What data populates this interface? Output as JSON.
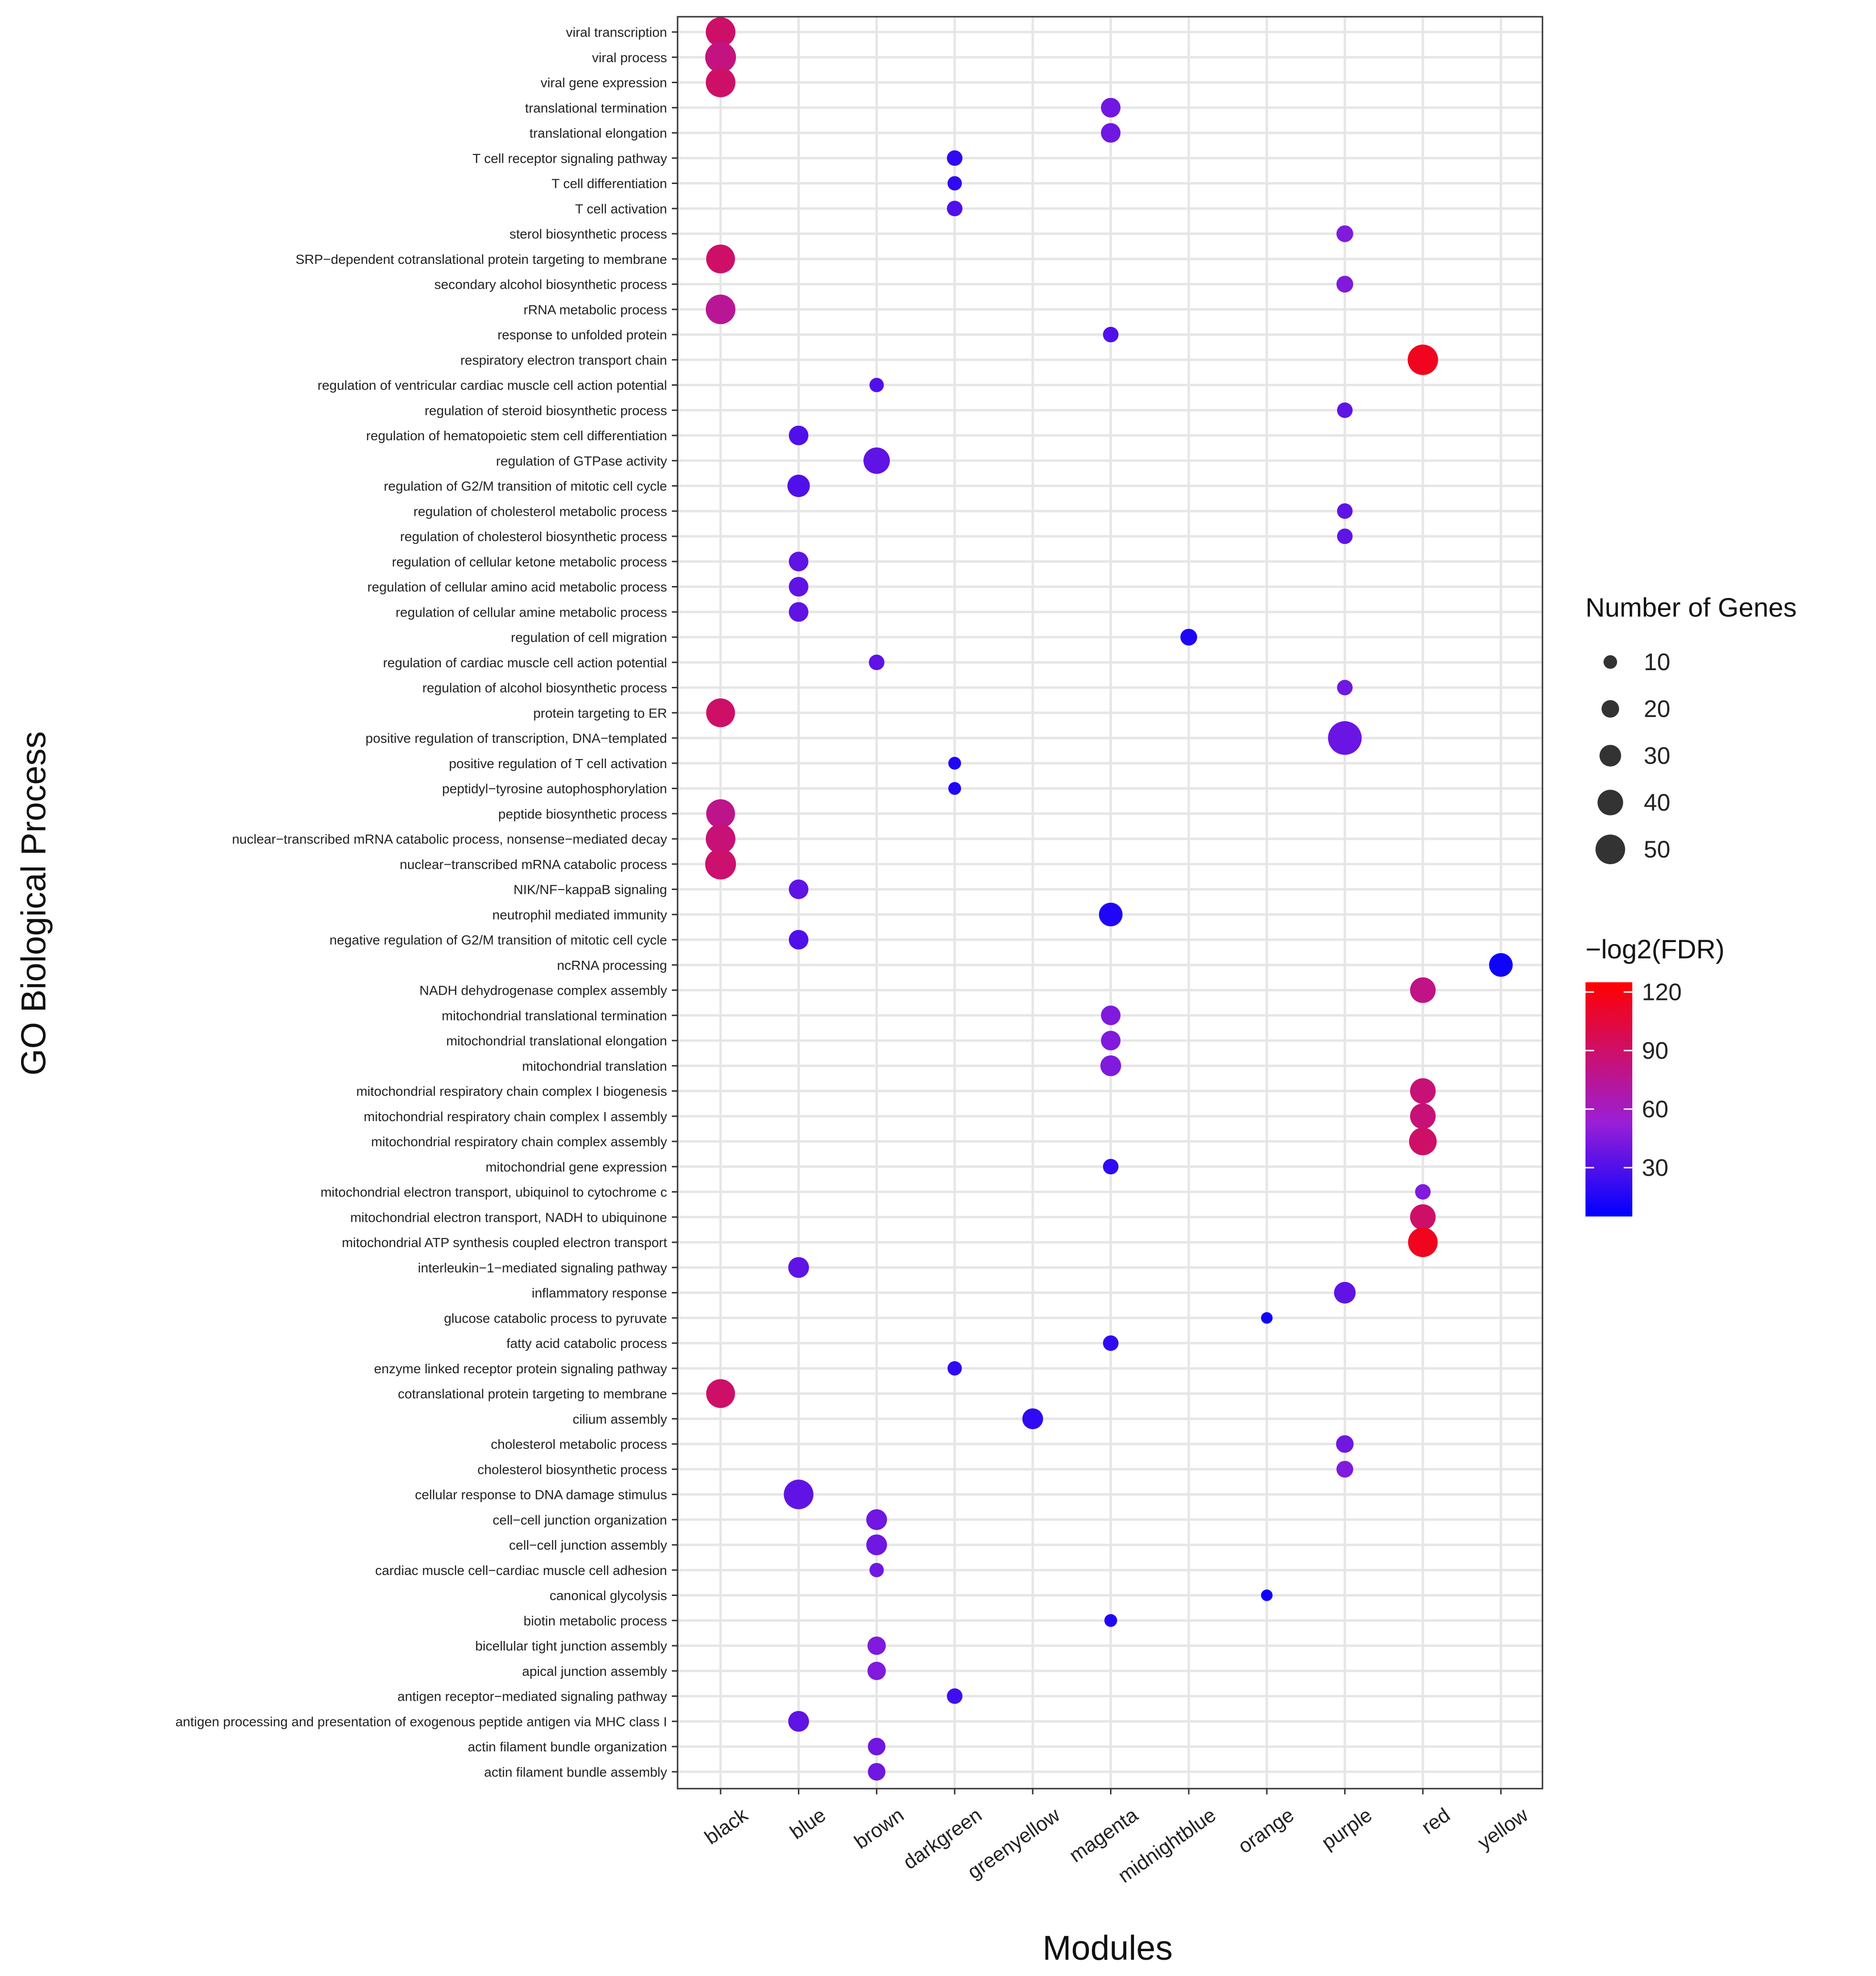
{
  "chart_data": {
    "type": "scatter",
    "title": "",
    "xlabel": "Modules",
    "ylabel": "GO Biological Process",
    "categories_x": [
      "black",
      "blue",
      "brown",
      "darkgreen",
      "greenyellow",
      "magenta",
      "midnightblue",
      "orange",
      "purple",
      "red",
      "yellow"
    ],
    "categories_y": [
      "viral transcription",
      "viral process",
      "viral gene expression",
      "translational termination",
      "translational elongation",
      "T cell receptor signaling pathway",
      "T cell differentiation",
      "T cell activation",
      "sterol biosynthetic process",
      "SRP−dependent cotranslational protein targeting to membrane",
      "secondary alcohol biosynthetic process",
      "rRNA metabolic process",
      "response to unfolded protein",
      "respiratory electron transport chain",
      "regulation of ventricular cardiac muscle cell action potential",
      "regulation of steroid biosynthetic process",
      "regulation of hematopoietic stem cell differentiation",
      "regulation of GTPase activity",
      "regulation of G2/M transition of mitotic cell cycle",
      "regulation of cholesterol metabolic process",
      "regulation of cholesterol biosynthetic process",
      "regulation of cellular ketone metabolic process",
      "regulation of cellular amino acid metabolic process",
      "regulation of cellular amine metabolic process",
      "regulation of cell migration",
      "regulation of cardiac muscle cell action potential",
      "regulation of alcohol biosynthetic process",
      "protein targeting to ER",
      "positive regulation of transcription, DNA−templated",
      "positive regulation of T cell activation",
      "peptidyl−tyrosine autophosphorylation",
      "peptide biosynthetic process",
      "nuclear−transcribed mRNA catabolic process, nonsense−mediated decay",
      "nuclear−transcribed mRNA catabolic process",
      "NIK/NF−kappaB signaling",
      "neutrophil mediated immunity",
      "negative regulation of G2/M transition of mitotic cell cycle",
      "ncRNA processing",
      "NADH dehydrogenase complex assembly",
      "mitochondrial translational termination",
      "mitochondrial translational elongation",
      "mitochondrial translation",
      "mitochondrial respiratory chain complex I biogenesis",
      "mitochondrial respiratory chain complex I assembly",
      "mitochondrial respiratory chain complex assembly",
      "mitochondrial gene expression",
      "mitochondrial electron transport, ubiquinol to cytochrome c",
      "mitochondrial electron transport, NADH to ubiquinone",
      "mitochondrial ATP synthesis coupled electron transport",
      "interleukin−1−mediated signaling pathway",
      "inflammatory response",
      "glucose catabolic process to pyruvate",
      "fatty acid catabolic process",
      "enzyme linked receptor protein signaling pathway",
      "cotranslational protein targeting to membrane",
      "cilium assembly",
      "cholesterol metabolic process",
      "cholesterol biosynthetic process",
      "cellular response to DNA damage stimulus",
      "cell−cell junction organization",
      "cell−cell junction assembly",
      "cardiac muscle cell−cardiac muscle cell adhesion",
      "canonical glycolysis",
      "biotin metabolic process",
      "bicellular tight junction assembly",
      "apical junction assembly",
      "antigen receptor−mediated signaling pathway",
      "antigen processing and presentation of exogenous peptide antigen via MHC class I",
      "actin filament bundle organization",
      "actin filament bundle assembly"
    ],
    "points": [
      {
        "y": "viral transcription",
        "x": "black",
        "genes": 50,
        "fdr": 90
      },
      {
        "y": "viral process",
        "x": "black",
        "genes": 53,
        "fdr": 82
      },
      {
        "y": "viral gene expression",
        "x": "black",
        "genes": 50,
        "fdr": 90
      },
      {
        "y": "translational termination",
        "x": "magenta",
        "genes": 25,
        "fdr": 40
      },
      {
        "y": "translational elongation",
        "x": "magenta",
        "genes": 25,
        "fdr": 40
      },
      {
        "y": "T cell receptor signaling pathway",
        "x": "darkgreen",
        "genes": 15,
        "fdr": 20
      },
      {
        "y": "T cell differentiation",
        "x": "darkgreen",
        "genes": 12,
        "fdr": 20
      },
      {
        "y": "T cell activation",
        "x": "darkgreen",
        "genes": 15,
        "fdr": 30
      },
      {
        "y": "sterol biosynthetic process",
        "x": "purple",
        "genes": 18,
        "fdr": 45
      },
      {
        "y": "SRP−dependent cotranslational protein targeting to membrane",
        "x": "black",
        "genes": 48,
        "fdr": 90
      },
      {
        "y": "secondary alcohol biosynthetic process",
        "x": "purple",
        "genes": 18,
        "fdr": 45
      },
      {
        "y": "rRNA metabolic process",
        "x": "black",
        "genes": 50,
        "fdr": 75
      },
      {
        "y": "response to unfolded protein",
        "x": "magenta",
        "genes": 15,
        "fdr": 30
      },
      {
        "y": "respiratory electron transport chain",
        "x": "red",
        "genes": 52,
        "fdr": 115
      },
      {
        "y": "regulation of ventricular cardiac muscle cell action potential",
        "x": "brown",
        "genes": 12,
        "fdr": 30
      },
      {
        "y": "regulation of steroid biosynthetic process",
        "x": "purple",
        "genes": 15,
        "fdr": 35
      },
      {
        "y": "regulation of hematopoietic stem cell differentiation",
        "x": "blue",
        "genes": 25,
        "fdr": 30
      },
      {
        "y": "regulation of GTPase activity",
        "x": "brown",
        "genes": 42,
        "fdr": 35
      },
      {
        "y": "regulation of G2/M transition of mitotic cell cycle",
        "x": "blue",
        "genes": 32,
        "fdr": 30
      },
      {
        "y": "regulation of cholesterol metabolic process",
        "x": "purple",
        "genes": 15,
        "fdr": 35
      },
      {
        "y": "regulation of cholesterol biosynthetic process",
        "x": "purple",
        "genes": 15,
        "fdr": 35
      },
      {
        "y": "regulation of cellular ketone metabolic process",
        "x": "blue",
        "genes": 25,
        "fdr": 35
      },
      {
        "y": "regulation of cellular amino acid metabolic process",
        "x": "blue",
        "genes": 25,
        "fdr": 35
      },
      {
        "y": "regulation of cellular amine metabolic process",
        "x": "blue",
        "genes": 25,
        "fdr": 35
      },
      {
        "y": "regulation of cell migration",
        "x": "midnightblue",
        "genes": 18,
        "fdr": 15
      },
      {
        "y": "regulation of cardiac muscle cell action potential",
        "x": "brown",
        "genes": 15,
        "fdr": 35
      },
      {
        "y": "regulation of alcohol biosynthetic process",
        "x": "purple",
        "genes": 15,
        "fdr": 40
      },
      {
        "y": "protein targeting to ER",
        "x": "black",
        "genes": 48,
        "fdr": 90
      },
      {
        "y": "positive regulation of transcription, DNA−templated",
        "x": "purple",
        "genes": 60,
        "fdr": 38
      },
      {
        "y": "positive regulation of T cell activation",
        "x": "darkgreen",
        "genes": 8,
        "fdr": 15
      },
      {
        "y": "peptidyl−tyrosine autophosphorylation",
        "x": "darkgreen",
        "genes": 8,
        "fdr": 15
      },
      {
        "y": "peptide biosynthetic process",
        "x": "black",
        "genes": 48,
        "fdr": 78
      },
      {
        "y": "nuclear−transcribed mRNA catabolic process, nonsense−mediated decay",
        "x": "black",
        "genes": 50,
        "fdr": 85
      },
      {
        "y": "nuclear−transcribed mRNA catabolic process",
        "x": "black",
        "genes": 53,
        "fdr": 88
      },
      {
        "y": "NIK/NF−kappaB signaling",
        "x": "blue",
        "genes": 25,
        "fdr": 35
      },
      {
        "y": "neutrophil mediated immunity",
        "x": "magenta",
        "genes": 35,
        "fdr": 15
      },
      {
        "y": "negative regulation of G2/M transition of mitotic cell cycle",
        "x": "blue",
        "genes": 25,
        "fdr": 30
      },
      {
        "y": "ncRNA processing",
        "x": "yellow",
        "genes": 35,
        "fdr": 10
      },
      {
        "y": "NADH dehydrogenase complex assembly",
        "x": "red",
        "genes": 40,
        "fdr": 80
      },
      {
        "y": "mitochondrial translational termination",
        "x": "magenta",
        "genes": 25,
        "fdr": 45
      },
      {
        "y": "mitochondrial translational elongation",
        "x": "magenta",
        "genes": 25,
        "fdr": 45
      },
      {
        "y": "mitochondrial translation",
        "x": "magenta",
        "genes": 28,
        "fdr": 45
      },
      {
        "y": "mitochondrial respiratory chain complex I biogenesis",
        "x": "red",
        "genes": 40,
        "fdr": 85
      },
      {
        "y": "mitochondrial respiratory chain complex I assembly",
        "x": "red",
        "genes": 40,
        "fdr": 85
      },
      {
        "y": "mitochondrial respiratory chain complex assembly",
        "x": "red",
        "genes": 45,
        "fdr": 90
      },
      {
        "y": "mitochondrial gene expression",
        "x": "magenta",
        "genes": 15,
        "fdr": 20
      },
      {
        "y": "mitochondrial electron transport, ubiquinol to cytochrome c",
        "x": "red",
        "genes": 15,
        "fdr": 45
      },
      {
        "y": "mitochondrial electron transport, NADH to ubiquinone",
        "x": "red",
        "genes": 40,
        "fdr": 90
      },
      {
        "y": "mitochondrial ATP synthesis coupled electron transport",
        "x": "red",
        "genes": 50,
        "fdr": 115
      },
      {
        "y": "interleukin−1−mediated signaling pathway",
        "x": "blue",
        "genes": 28,
        "fdr": 35
      },
      {
        "y": "inflammatory response",
        "x": "purple",
        "genes": 30,
        "fdr": 35
      },
      {
        "y": "glucose catabolic process to pyruvate",
        "x": "orange",
        "genes": 5,
        "fdr": 10
      },
      {
        "y": "fatty acid catabolic process",
        "x": "magenta",
        "genes": 15,
        "fdr": 20
      },
      {
        "y": "enzyme linked receptor protein signaling pathway",
        "x": "darkgreen",
        "genes": 12,
        "fdr": 20
      },
      {
        "y": "cotranslational protein targeting to membrane",
        "x": "black",
        "genes": 48,
        "fdr": 90
      },
      {
        "y": "cilium assembly",
        "x": "greenyellow",
        "genes": 28,
        "fdr": 20
      },
      {
        "y": "cholesterol metabolic process",
        "x": "purple",
        "genes": 20,
        "fdr": 40
      },
      {
        "y": "cholesterol biosynthetic process",
        "x": "purple",
        "genes": 18,
        "fdr": 45
      },
      {
        "y": "cellular response to DNA damage stimulus",
        "x": "blue",
        "genes": 50,
        "fdr": 35
      },
      {
        "y": "cell−cell junction organization",
        "x": "brown",
        "genes": 28,
        "fdr": 40
      },
      {
        "y": "cell−cell junction assembly",
        "x": "brown",
        "genes": 28,
        "fdr": 40
      },
      {
        "y": "cardiac muscle cell−cardiac muscle cell adhesion",
        "x": "brown",
        "genes": 12,
        "fdr": 40
      },
      {
        "y": "canonical glycolysis",
        "x": "orange",
        "genes": 5,
        "fdr": 10
      },
      {
        "y": "biotin metabolic process",
        "x": "magenta",
        "genes": 8,
        "fdr": 15
      },
      {
        "y": "bicellular tight junction assembly",
        "x": "brown",
        "genes": 22,
        "fdr": 45
      },
      {
        "y": "apical junction assembly",
        "x": "brown",
        "genes": 22,
        "fdr": 45
      },
      {
        "y": "antigen receptor−mediated signaling pathway",
        "x": "darkgreen",
        "genes": 15,
        "fdr": 25
      },
      {
        "y": "antigen processing and presentation of exogenous peptide antigen via MHC class I",
        "x": "blue",
        "genes": 28,
        "fdr": 35
      },
      {
        "y": "actin filament bundle organization",
        "x": "brown",
        "genes": 20,
        "fdr": 40
      },
      {
        "y": "actin filament bundle assembly",
        "x": "brown",
        "genes": 20,
        "fdr": 40
      }
    ],
    "size_legend": {
      "title": "Number of Genes",
      "breaks": [
        10,
        20,
        30,
        40,
        50
      ]
    },
    "color_legend": {
      "title": "−log2(FDR)",
      "breaks": [
        30,
        60,
        90,
        120
      ],
      "range": [
        5,
        125
      ],
      "low_color": "#0000ff",
      "mid_color": "#9a1fd6",
      "high_color": "#ff0000"
    },
    "grid": true
  }
}
